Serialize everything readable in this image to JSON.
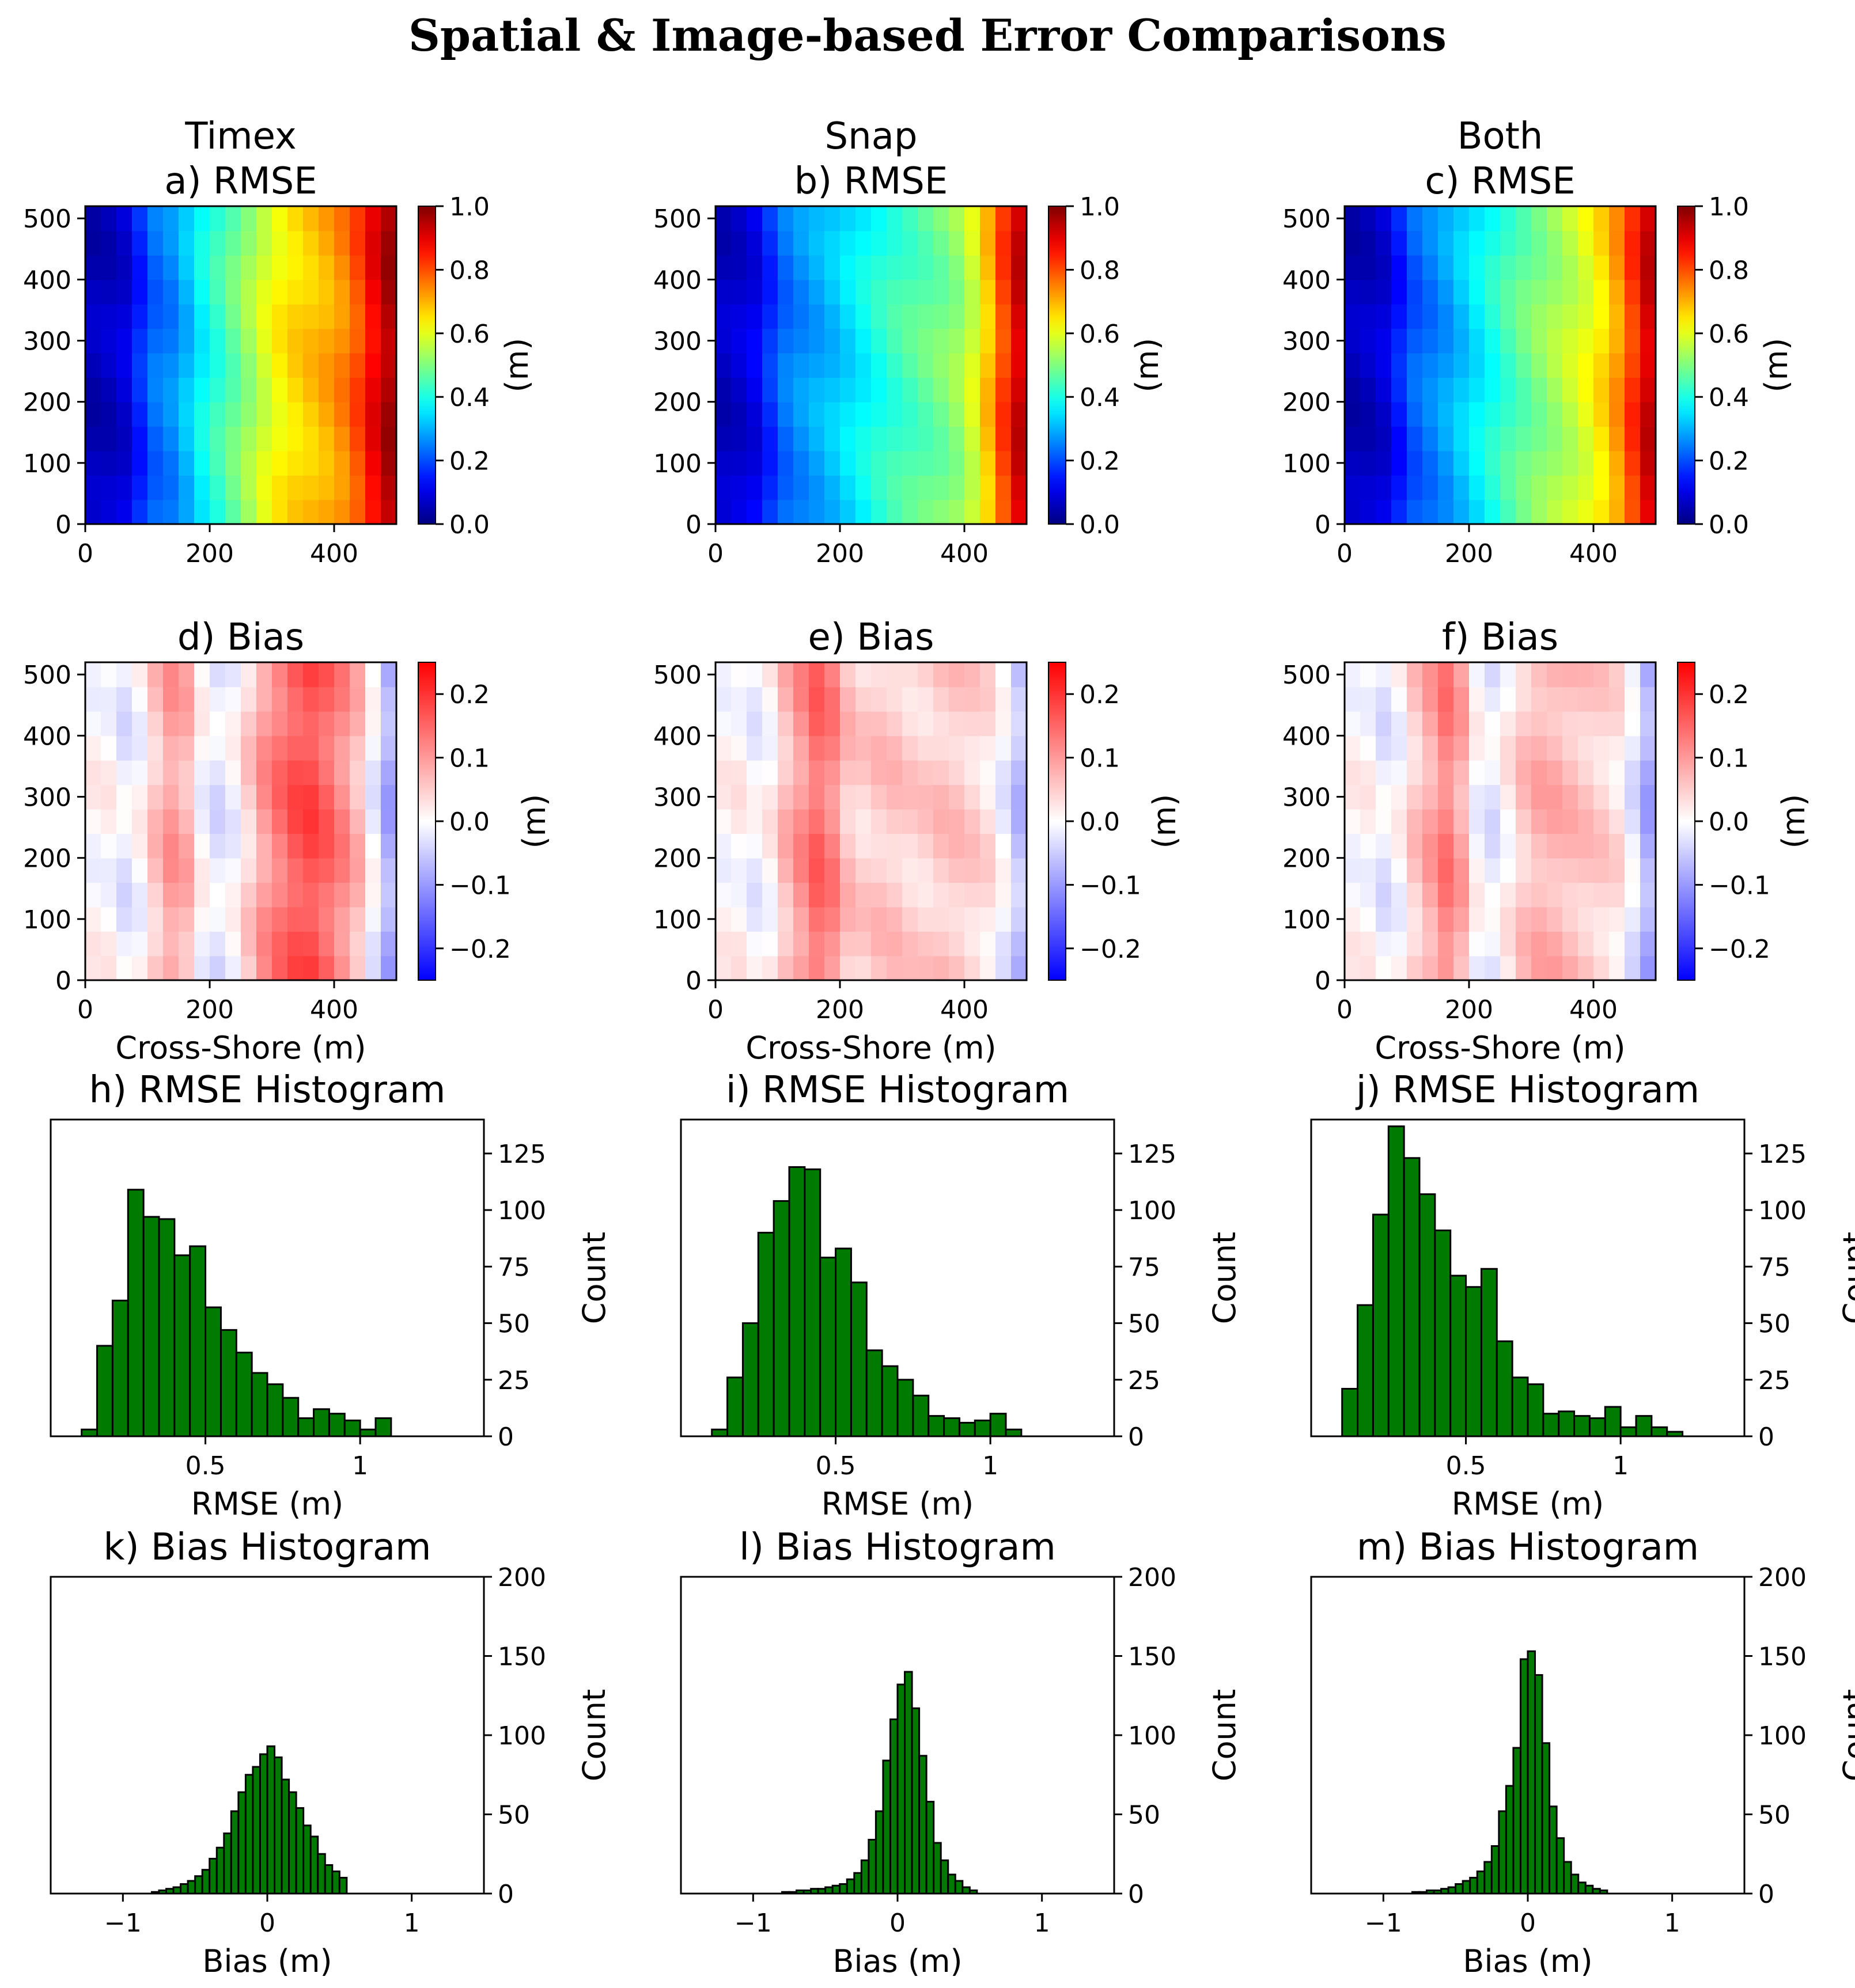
{
  "figure_title": "Spatial & Image-based Error Comparisons",
  "columns": [
    "Timex",
    "Snap",
    "Both"
  ],
  "units_label": "(m)",
  "count_label": "Count",
  "chart_data": [
    {
      "id": "a",
      "type": "heatmap",
      "column": "Timex",
      "title": "a) RMSE",
      "colormap": "jet",
      "xlabel": "",
      "ylabel": "",
      "xlim": [
        0,
        500
      ],
      "ylim": [
        0,
        520
      ],
      "xticks": [
        0,
        200,
        400
      ],
      "yticks": [
        0,
        100,
        200,
        300,
        400,
        500
      ],
      "vlim": [
        0.0,
        1.0
      ],
      "cbar_ticks": [
        "0.0",
        "0.2",
        "0.4",
        "0.6",
        "0.8",
        "1.0"
      ],
      "cbar_label": "(m)",
      "profile_x": [
        0,
        25,
        50,
        75,
        100,
        125,
        150,
        175,
        200,
        225,
        250,
        275,
        300,
        325,
        350,
        375,
        400,
        425,
        450,
        475,
        500
      ],
      "profile": [
        0.05,
        0.06,
        0.07,
        0.1,
        0.22,
        0.24,
        0.27,
        0.35,
        0.4,
        0.45,
        0.5,
        0.56,
        0.61,
        0.65,
        0.67,
        0.69,
        0.72,
        0.76,
        0.84,
        0.93,
        0.98
      ]
    },
    {
      "id": "b",
      "type": "heatmap",
      "column": "Snap",
      "title": "b) RMSE",
      "colormap": "jet",
      "xlabel": "",
      "ylabel": "",
      "xlim": [
        0,
        500
      ],
      "ylim": [
        0,
        520
      ],
      "xticks": [
        0,
        200,
        400
      ],
      "yticks": [
        0,
        100,
        200,
        300,
        400,
        500
      ],
      "vlim": [
        0.0,
        1.0
      ],
      "cbar_ticks": [
        "0.0",
        "0.2",
        "0.4",
        "0.6",
        "0.8",
        "1.0"
      ],
      "cbar_label": "(m)",
      "profile_x": [
        0,
        25,
        50,
        75,
        100,
        125,
        150,
        175,
        200,
        225,
        250,
        275,
        300,
        325,
        350,
        375,
        400,
        425,
        450,
        475,
        500
      ],
      "profile": [
        0.06,
        0.07,
        0.09,
        0.12,
        0.22,
        0.25,
        0.28,
        0.3,
        0.33,
        0.36,
        0.39,
        0.42,
        0.44,
        0.46,
        0.48,
        0.5,
        0.54,
        0.62,
        0.74,
        0.88,
        0.96
      ]
    },
    {
      "id": "c",
      "type": "heatmap",
      "column": "Both",
      "title": "c) RMSE",
      "colormap": "jet",
      "xlabel": "",
      "ylabel": "",
      "xlim": [
        0,
        500
      ],
      "ylim": [
        0,
        520
      ],
      "xticks": [
        0,
        200,
        400
      ],
      "yticks": [
        0,
        100,
        200,
        300,
        400,
        500
      ],
      "vlim": [
        0.0,
        1.0
      ],
      "cbar_ticks": [
        "0.0",
        "0.2",
        "0.4",
        "0.6",
        "0.8",
        "1.0"
      ],
      "cbar_label": "(m)",
      "profile_x": [
        0,
        25,
        50,
        75,
        100,
        125,
        150,
        175,
        200,
        225,
        250,
        275,
        300,
        325,
        350,
        375,
        400,
        425,
        450,
        475,
        500
      ],
      "profile": [
        0.05,
        0.06,
        0.07,
        0.1,
        0.2,
        0.23,
        0.26,
        0.3,
        0.34,
        0.38,
        0.42,
        0.46,
        0.49,
        0.52,
        0.55,
        0.58,
        0.62,
        0.68,
        0.76,
        0.88,
        0.96
      ]
    },
    {
      "id": "d",
      "type": "heatmap",
      "column": "Timex",
      "title": "d) Bias",
      "colormap": "bwr",
      "xlabel": "Cross-Shore (m)",
      "ylabel": "",
      "xlim": [
        0,
        500
      ],
      "ylim": [
        0,
        520
      ],
      "xticks": [
        0,
        200,
        400
      ],
      "yticks": [
        0,
        100,
        200,
        300,
        400,
        500
      ],
      "vlim": [
        -0.25,
        0.25
      ],
      "cbar_ticks": [
        "−0.2",
        "−0.1",
        "0.0",
        "0.1",
        "0.2"
      ],
      "cbar_label": "(m)",
      "profile_x": [
        0,
        25,
        50,
        75,
        100,
        125,
        150,
        175,
        200,
        225,
        250,
        275,
        300,
        325,
        350,
        375,
        400,
        425,
        450,
        475,
        500
      ],
      "profile": [
        0.0,
        0.01,
        0.0,
        -0.04,
        0.04,
        0.07,
        0.12,
        0.03,
        -0.03,
        -0.02,
        0.01,
        0.08,
        0.12,
        0.15,
        0.18,
        0.17,
        0.13,
        0.1,
        0.04,
        -0.06,
        -0.1
      ]
    },
    {
      "id": "e",
      "type": "heatmap",
      "column": "Snap",
      "title": "e) Bias",
      "colormap": "bwr",
      "xlabel": "Cross-Shore (m)",
      "ylabel": "",
      "xlim": [
        0,
        500
      ],
      "ylim": [
        0,
        520
      ],
      "xticks": [
        0,
        200,
        400
      ],
      "yticks": [
        0,
        100,
        200,
        300,
        400,
        500
      ],
      "vlim": [
        -0.25,
        0.25
      ],
      "cbar_ticks": [
        "−0.2",
        "−0.1",
        "0.0",
        "0.1",
        "0.2"
      ],
      "cbar_label": "(m)",
      "profile_x": [
        0,
        25,
        50,
        75,
        100,
        125,
        150,
        175,
        200,
        225,
        250,
        275,
        300,
        325,
        350,
        375,
        400,
        425,
        450,
        475,
        500
      ],
      "profile": [
        0.0,
        0.01,
        0.01,
        -0.03,
        0.05,
        0.08,
        0.13,
        0.16,
        0.08,
        0.04,
        0.05,
        0.06,
        0.05,
        0.04,
        0.05,
        0.06,
        0.05,
        0.04,
        0.02,
        -0.04,
        -0.08
      ]
    },
    {
      "id": "f",
      "type": "heatmap",
      "column": "Both",
      "title": "f) Bias",
      "colormap": "bwr",
      "xlabel": "Cross-Shore (m)",
      "ylabel": "",
      "xlim": [
        0,
        500
      ],
      "ylim": [
        0,
        520
      ],
      "xticks": [
        0,
        200,
        400
      ],
      "yticks": [
        0,
        100,
        200,
        300,
        400,
        500
      ],
      "vlim": [
        -0.25,
        0.25
      ],
      "cbar_ticks": [
        "−0.2",
        "−0.1",
        "0.0",
        "0.1",
        "0.2"
      ],
      "cbar_label": "(m)",
      "profile_x": [
        0,
        25,
        50,
        75,
        100,
        125,
        150,
        175,
        200,
        225,
        250,
        275,
        300,
        325,
        350,
        375,
        400,
        425,
        450,
        475,
        500
      ],
      "profile": [
        0.0,
        0.01,
        0.0,
        -0.04,
        0.04,
        0.06,
        0.11,
        0.14,
        0.03,
        -0.03,
        -0.01,
        0.04,
        0.07,
        0.08,
        0.07,
        0.06,
        0.05,
        0.04,
        0.02,
        -0.06,
        -0.1
      ]
    },
    {
      "id": "h",
      "type": "bar",
      "title": "h) RMSE Histogram",
      "xlabel": "RMSE (m)",
      "ylabel": "Count",
      "xlim": [
        0.0,
        1.4
      ],
      "ylim": [
        0,
        140
      ],
      "xticks": [
        0.5,
        1.0
      ],
      "yticks": [
        0,
        25,
        50,
        75,
        100,
        125
      ],
      "bin_start": 0.1,
      "bin_width": 0.05,
      "values": [
        3,
        40,
        60,
        109,
        97,
        96,
        80,
        84,
        57,
        47,
        37,
        28,
        23,
        17,
        8,
        12,
        10,
        7,
        3,
        8
      ]
    },
    {
      "id": "i",
      "type": "bar",
      "title": "i) RMSE Histogram",
      "xlabel": "RMSE (m)",
      "ylabel": "Count",
      "xlim": [
        0.0,
        1.4
      ],
      "ylim": [
        0,
        140
      ],
      "xticks": [
        0.5,
        1.0
      ],
      "yticks": [
        0,
        25,
        50,
        75,
        100,
        125
      ],
      "bin_start": 0.1,
      "bin_width": 0.05,
      "values": [
        3,
        26,
        50,
        90,
        104,
        119,
        118,
        79,
        83,
        68,
        38,
        31,
        25,
        18,
        9,
        8,
        6,
        7,
        10,
        3
      ]
    },
    {
      "id": "j",
      "type": "bar",
      "title": "j) RMSE Histogram",
      "xlabel": "RMSE (m)",
      "ylabel": "Count",
      "xlim": [
        0.0,
        1.4
      ],
      "ylim": [
        0,
        140
      ],
      "xticks": [
        0.5,
        1.0
      ],
      "yticks": [
        0,
        25,
        50,
        75,
        100,
        125
      ],
      "bin_start": 0.1,
      "bin_width": 0.05,
      "values": [
        21,
        58,
        98,
        137,
        123,
        107,
        91,
        71,
        66,
        74,
        42,
        26,
        23,
        10,
        11,
        9,
        8,
        13,
        4,
        9,
        4,
        2
      ]
    },
    {
      "id": "k",
      "type": "bar",
      "title": "k) Bias Histogram",
      "xlabel": "Bias (m)",
      "ylabel": "Count",
      "xlim": [
        -1.5,
        1.5
      ],
      "ylim": [
        0,
        200
      ],
      "xticks": [
        -1,
        0,
        1
      ],
      "xtick_labels": [
        "−1",
        "0",
        "1"
      ],
      "yticks": [
        0,
        50,
        100,
        150,
        200
      ],
      "bin_start": -0.8,
      "bin_width": 0.05,
      "values": [
        1,
        2,
        3,
        4,
        6,
        8,
        11,
        15,
        22,
        29,
        38,
        52,
        64,
        75,
        80,
        88,
        93,
        86,
        72,
        64,
        54,
        43,
        36,
        25,
        18,
        14,
        10
      ]
    },
    {
      "id": "l",
      "type": "bar",
      "title": "l) Bias Histogram",
      "xlabel": "Bias (m)",
      "ylabel": "Count",
      "xlim": [
        -1.5,
        1.5
      ],
      "ylim": [
        0,
        200
      ],
      "xticks": [
        -1,
        0,
        1
      ],
      "xtick_labels": [
        "−1",
        "0",
        "1"
      ],
      "yticks": [
        0,
        50,
        100,
        150,
        200
      ],
      "bin_start": -0.8,
      "bin_width": 0.05,
      "values": [
        1,
        1,
        2,
        2,
        3,
        3,
        4,
        5,
        6,
        9,
        13,
        21,
        34,
        52,
        84,
        110,
        132,
        140,
        117,
        87,
        58,
        32,
        21,
        12,
        8,
        4,
        2
      ]
    },
    {
      "id": "m",
      "type": "bar",
      "title": "m) Bias Histogram",
      "xlabel": "Bias (m)",
      "ylabel": "Count",
      "xlim": [
        -1.5,
        1.5
      ],
      "ylim": [
        0,
        200
      ],
      "xticks": [
        -1,
        0,
        1
      ],
      "xtick_labels": [
        "−1",
        "0",
        "1"
      ],
      "yticks": [
        0,
        50,
        100,
        150,
        200
      ],
      "bin_start": -0.8,
      "bin_width": 0.05,
      "values": [
        1,
        1,
        2,
        2,
        3,
        4,
        6,
        8,
        10,
        14,
        20,
        30,
        52,
        68,
        92,
        148,
        153,
        138,
        95,
        55,
        35,
        20,
        12,
        7,
        5,
        3,
        2
      ]
    }
  ],
  "colors": {
    "bar_fill": "#007a00",
    "bar_edge": "#000000",
    "axis": "#000000"
  }
}
